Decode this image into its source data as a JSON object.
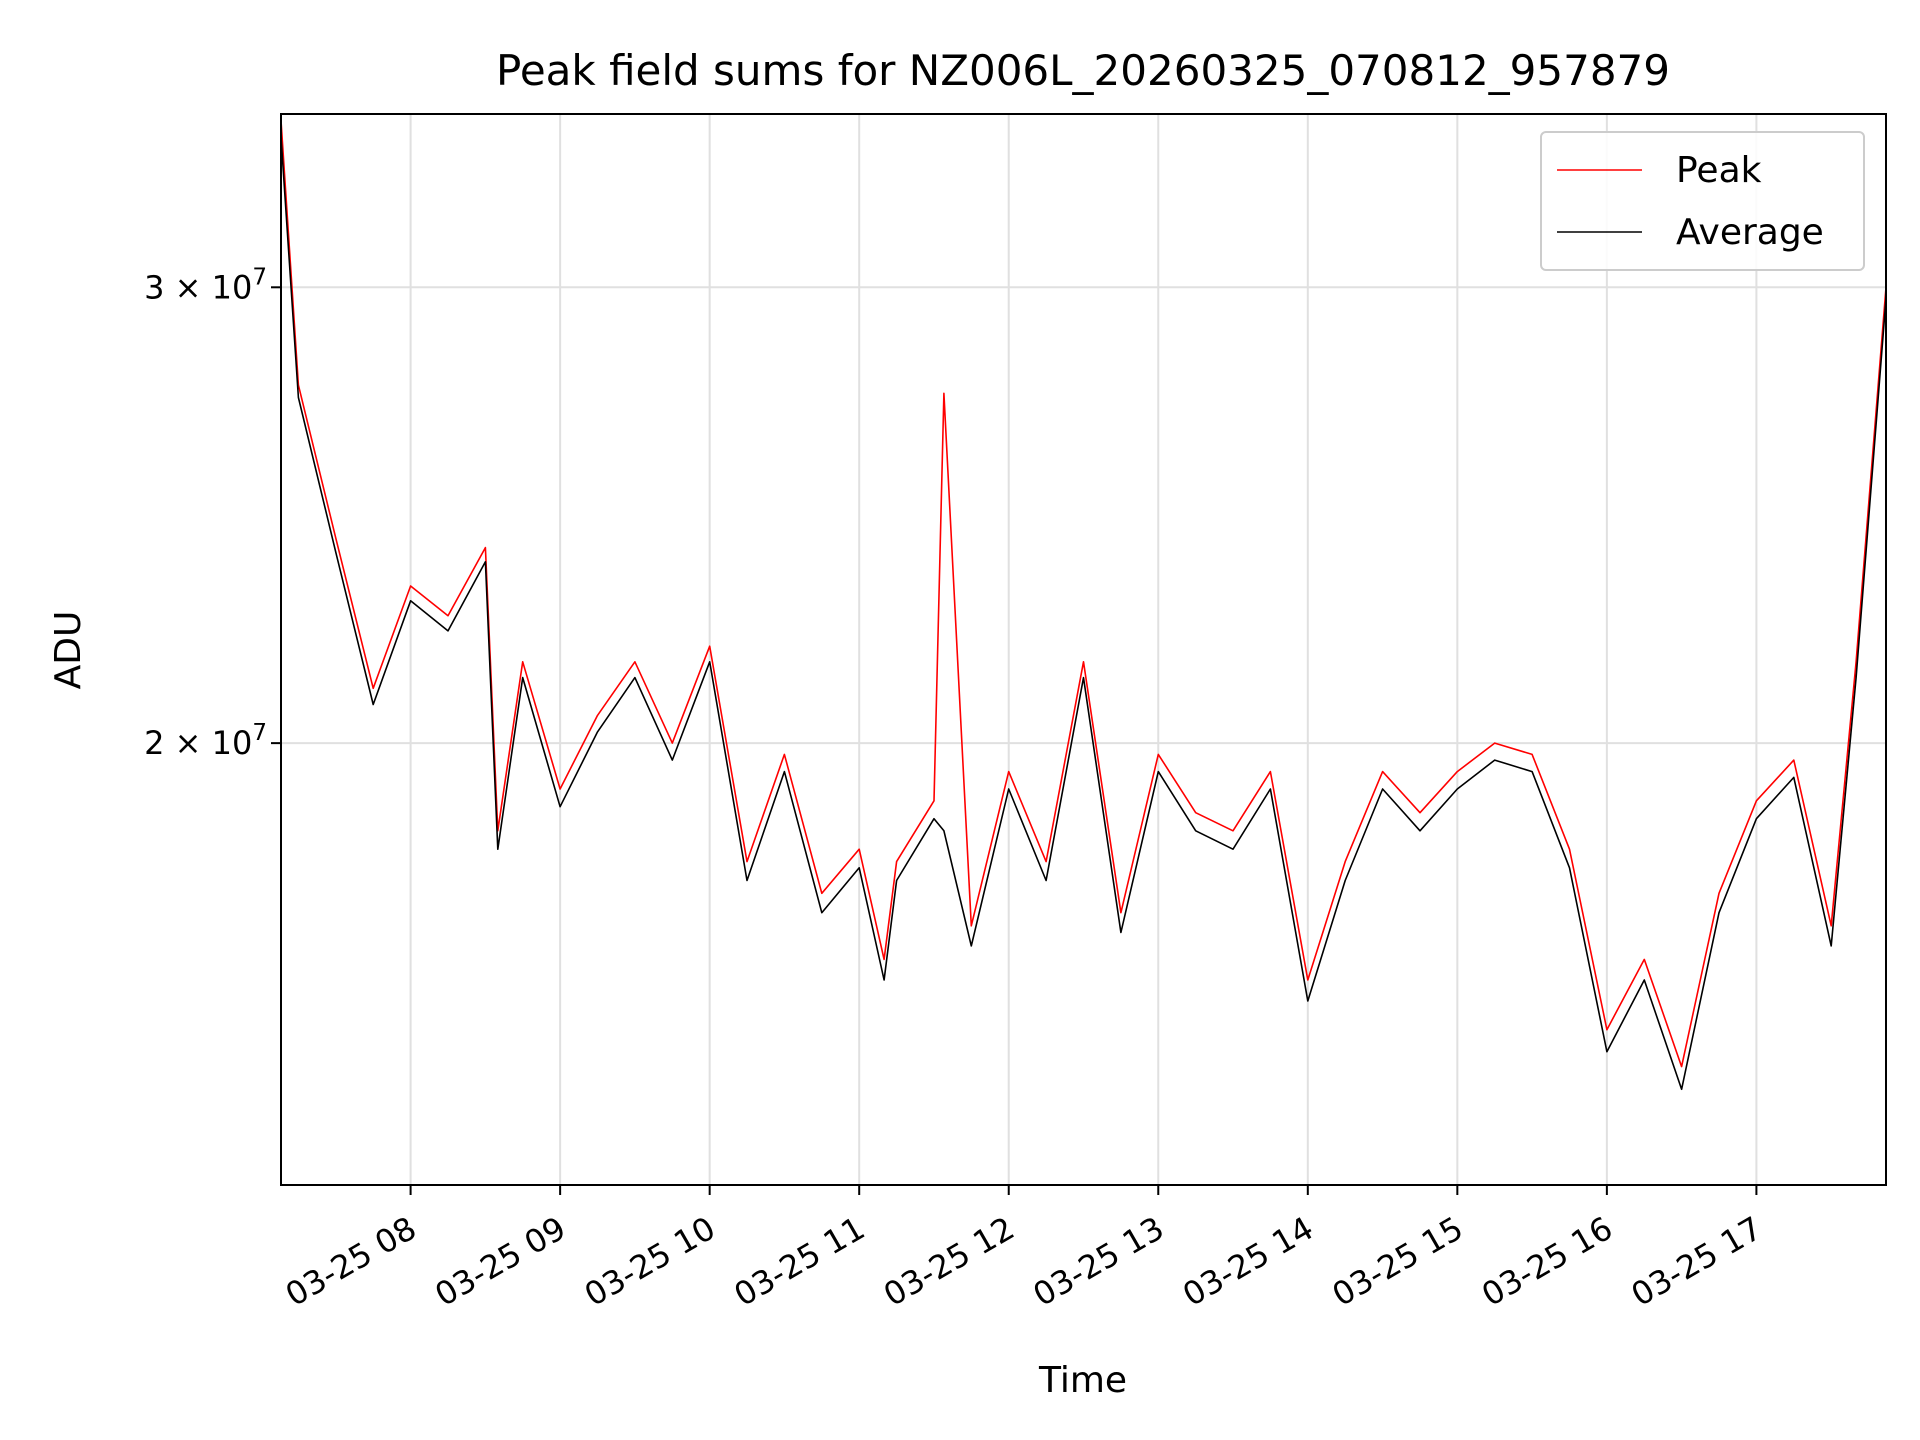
{
  "chart_data": {
    "type": "line",
    "title": "Peak field sums for NZ006L_20260325_070812_957879",
    "xlabel": "Time",
    "ylabel": "ADU",
    "y_scale": "log",
    "grid": true,
    "legend_position": "top-right",
    "xlim": [
      "03-25 07:08",
      "03-25 17:52"
    ],
    "ylim": [
      13500000,
      35000000
    ],
    "x_ticks": [
      "03-25 08",
      "03-25 09",
      "03-25 10",
      "03-25 11",
      "03-25 12",
      "03-25 13",
      "03-25 14",
      "03-25 15",
      "03-25 16",
      "03-25 17"
    ],
    "y_ticks": [
      {
        "value": 20000000,
        "mantissa": "2",
        "base": "10",
        "exponent": "7"
      },
      {
        "value": 30000000,
        "mantissa": "3",
        "base": "10",
        "exponent": "7"
      }
    ],
    "x": [
      "07:08",
      "07:15",
      "07:30",
      "07:45",
      "08:00",
      "08:15",
      "08:30",
      "08:35",
      "08:45",
      "09:00",
      "09:15",
      "09:30",
      "09:45",
      "10:00",
      "10:15",
      "10:30",
      "10:45",
      "11:00",
      "11:10",
      "11:15",
      "11:30",
      "11:34",
      "11:45",
      "12:00",
      "12:15",
      "12:30",
      "12:45",
      "13:00",
      "13:15",
      "13:30",
      "13:45",
      "14:00",
      "14:15",
      "14:30",
      "14:45",
      "15:00",
      "15:15",
      "15:30",
      "15:45",
      "16:00",
      "16:15",
      "16:30",
      "16:45",
      "17:00",
      "17:15",
      "17:30",
      "17:40",
      "17:52"
    ],
    "series": [
      {
        "name": "Peak",
        "color": "#ff0000",
        "values": [
          34800000,
          27500000,
          24000000,
          21000000,
          23000000,
          22400000,
          23800000,
          18500000,
          21500000,
          19200000,
          20500000,
          21500000,
          20000000,
          21800000,
          18000000,
          19800000,
          17500000,
          18200000,
          16500000,
          18000000,
          19000000,
          27300000,
          17000000,
          19500000,
          18000000,
          21500000,
          17200000,
          19800000,
          18800000,
          18500000,
          19500000,
          16200000,
          18000000,
          19500000,
          18800000,
          19500000,
          20000000,
          19800000,
          18200000,
          15500000,
          16500000,
          15000000,
          17500000,
          19000000,
          19700000,
          17000000,
          21500000,
          30000000
        ]
      },
      {
        "name": "Average",
        "color": "#000000",
        "values": [
          34300000,
          27200000,
          23700000,
          20700000,
          22700000,
          22100000,
          23500000,
          18200000,
          21200000,
          18900000,
          20200000,
          21200000,
          19700000,
          21500000,
          17700000,
          19500000,
          17200000,
          17900000,
          16200000,
          17700000,
          18700000,
          18500000,
          16700000,
          19200000,
          17700000,
          21200000,
          16900000,
          19500000,
          18500000,
          18200000,
          19200000,
          15900000,
          17700000,
          19200000,
          18500000,
          19200000,
          19700000,
          19500000,
          17900000,
          15200000,
          16200000,
          14700000,
          17200000,
          18700000,
          19400000,
          16700000,
          21200000,
          29700000
        ]
      }
    ]
  }
}
